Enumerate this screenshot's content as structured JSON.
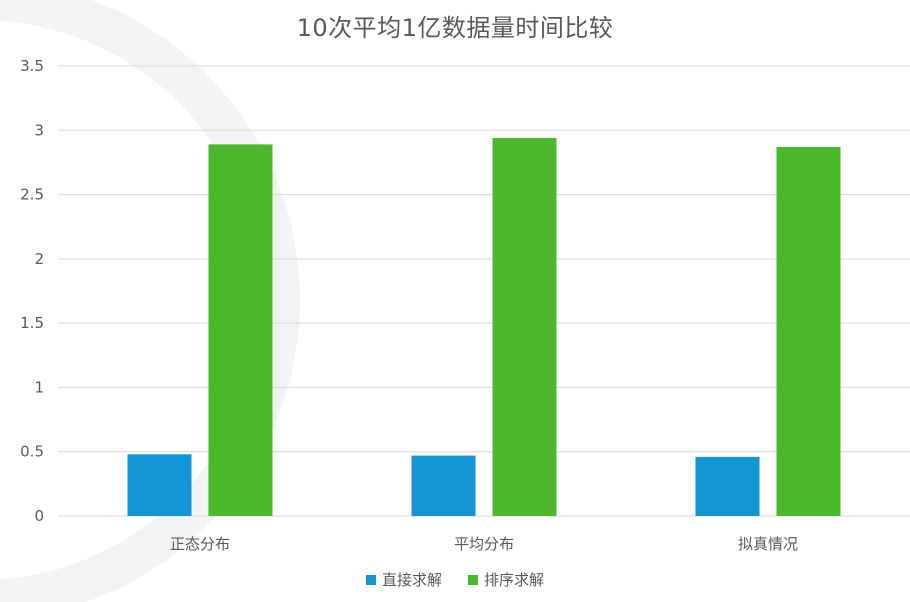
{
  "chart_data": {
    "type": "bar",
    "title": "10次平均1亿数据量时间比较",
    "categories": [
      "正态分布",
      "平均分布",
      "拟真情况"
    ],
    "series": [
      {
        "name": "直接求解",
        "color": "#1395D3",
        "values": [
          0.48,
          0.47,
          0.46
        ]
      },
      {
        "name": "排序求解",
        "color": "#4CB82C",
        "values": [
          2.89,
          2.94,
          2.87
        ]
      }
    ],
    "ylim": [
      0,
      3.5
    ],
    "yticks": [
      "0",
      "0.5",
      "1",
      "1.5",
      "2",
      "2.5",
      "3",
      "3.5"
    ],
    "ytick_values": [
      0,
      0.5,
      1,
      1.5,
      2,
      2.5,
      3,
      3.5
    ],
    "grid": true,
    "legend_position": "bottom",
    "xlabel": "",
    "ylabel": ""
  },
  "colors": {
    "grid": "#D9D9D9",
    "text": "#595959",
    "background_arc": "#F2F2F2"
  }
}
